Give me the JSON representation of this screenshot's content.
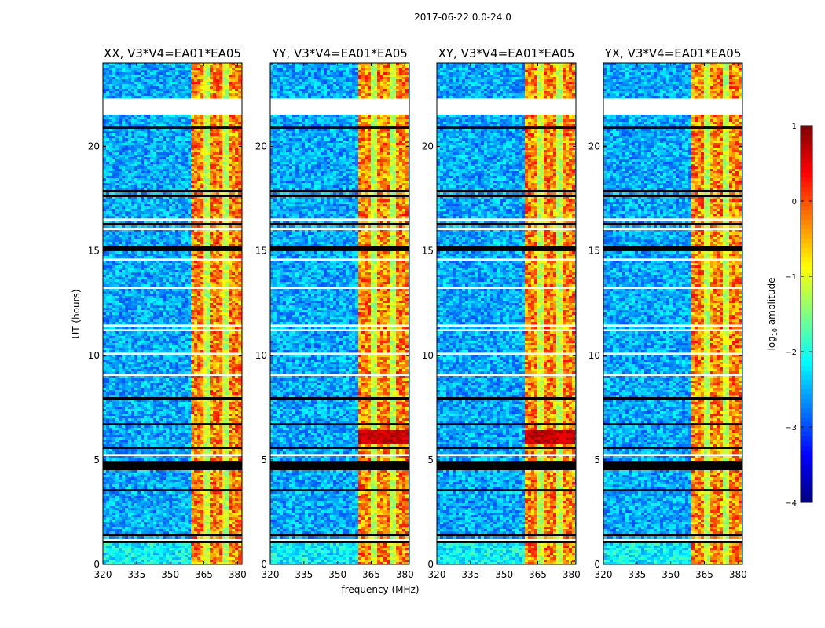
{
  "chart_data": {
    "type": "heatmap",
    "suptitle": "2017-06-22 0.0-24.0",
    "panels": [
      {
        "title": "XX, V3*V4=EA01*EA05",
        "pol": "XX"
      },
      {
        "title": "YY, V3*V4=EA01*EA05",
        "pol": "YY"
      },
      {
        "title": "XY, V3*V4=EA01*EA05",
        "pol": "XY"
      },
      {
        "title": "YX, V3*V4=EA01*EA05",
        "pol": "YX"
      }
    ],
    "xlabel": "frequency (MHz)",
    "ylabel": "UT (hours)",
    "xlim": [
      320,
      382
    ],
    "ylim": [
      0,
      24
    ],
    "xticks": [
      "320",
      "335",
      "350",
      "365",
      "380"
    ],
    "xtick_values": [
      320,
      335,
      350,
      365,
      380
    ],
    "yticks": [
      "0",
      "5",
      "10",
      "15",
      "20"
    ],
    "ytick_values": [
      0,
      5,
      10,
      15,
      20
    ],
    "colorbar": {
      "label_prefix": "log",
      "label_sub": "10",
      "label_suffix": " amplitude",
      "range": [
        -4,
        1
      ],
      "ticks": [
        "1",
        "0",
        "−1",
        "−2",
        "−3",
        "−4"
      ],
      "tick_values": [
        1,
        0,
        -1,
        -2,
        -3,
        -4
      ],
      "colormap": "jet"
    },
    "bright_band_MHz": [
      359.5,
      381
    ],
    "data_gaps_UT_hours": [
      [
        21.5,
        22.3
      ]
    ],
    "flagged_black_UT_hours": [
      [
        15.0,
        15.2
      ]
    ],
    "grid": false
  }
}
